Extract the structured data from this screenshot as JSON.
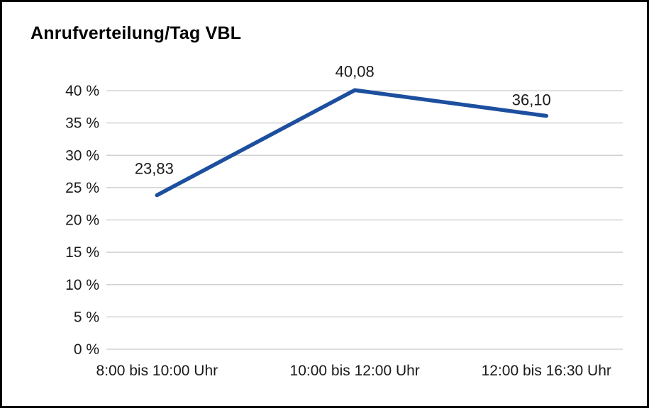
{
  "colors": {
    "line": "#1d4f9f",
    "grid": "#c9c9c9",
    "text": "#1a1a1a",
    "border": "#000000",
    "background": "#ffffff"
  },
  "chart_data": {
    "type": "line",
    "title": "Anrufverteilung/Tag VBL",
    "categories": [
      "8:00 bis 10:00 Uhr",
      "10:00 bis 12:00 Uhr",
      "12:00 bis 16:30 Uhr"
    ],
    "values": [
      23.83,
      40.08,
      36.1
    ],
    "value_labels": [
      "23,83",
      "40,08",
      "36,10"
    ],
    "xlabel": "",
    "ylabel": "",
    "ylim": [
      0,
      40
    ],
    "ytick_values": [
      0,
      5,
      10,
      15,
      20,
      25,
      30,
      35,
      40
    ],
    "ytick_labels": [
      "0 %",
      "5 %",
      "10 %",
      "15 %",
      "20 %",
      "25 %",
      "30 %",
      "35 %",
      "40 %"
    ],
    "grid": "horizontal",
    "legend": "none"
  }
}
